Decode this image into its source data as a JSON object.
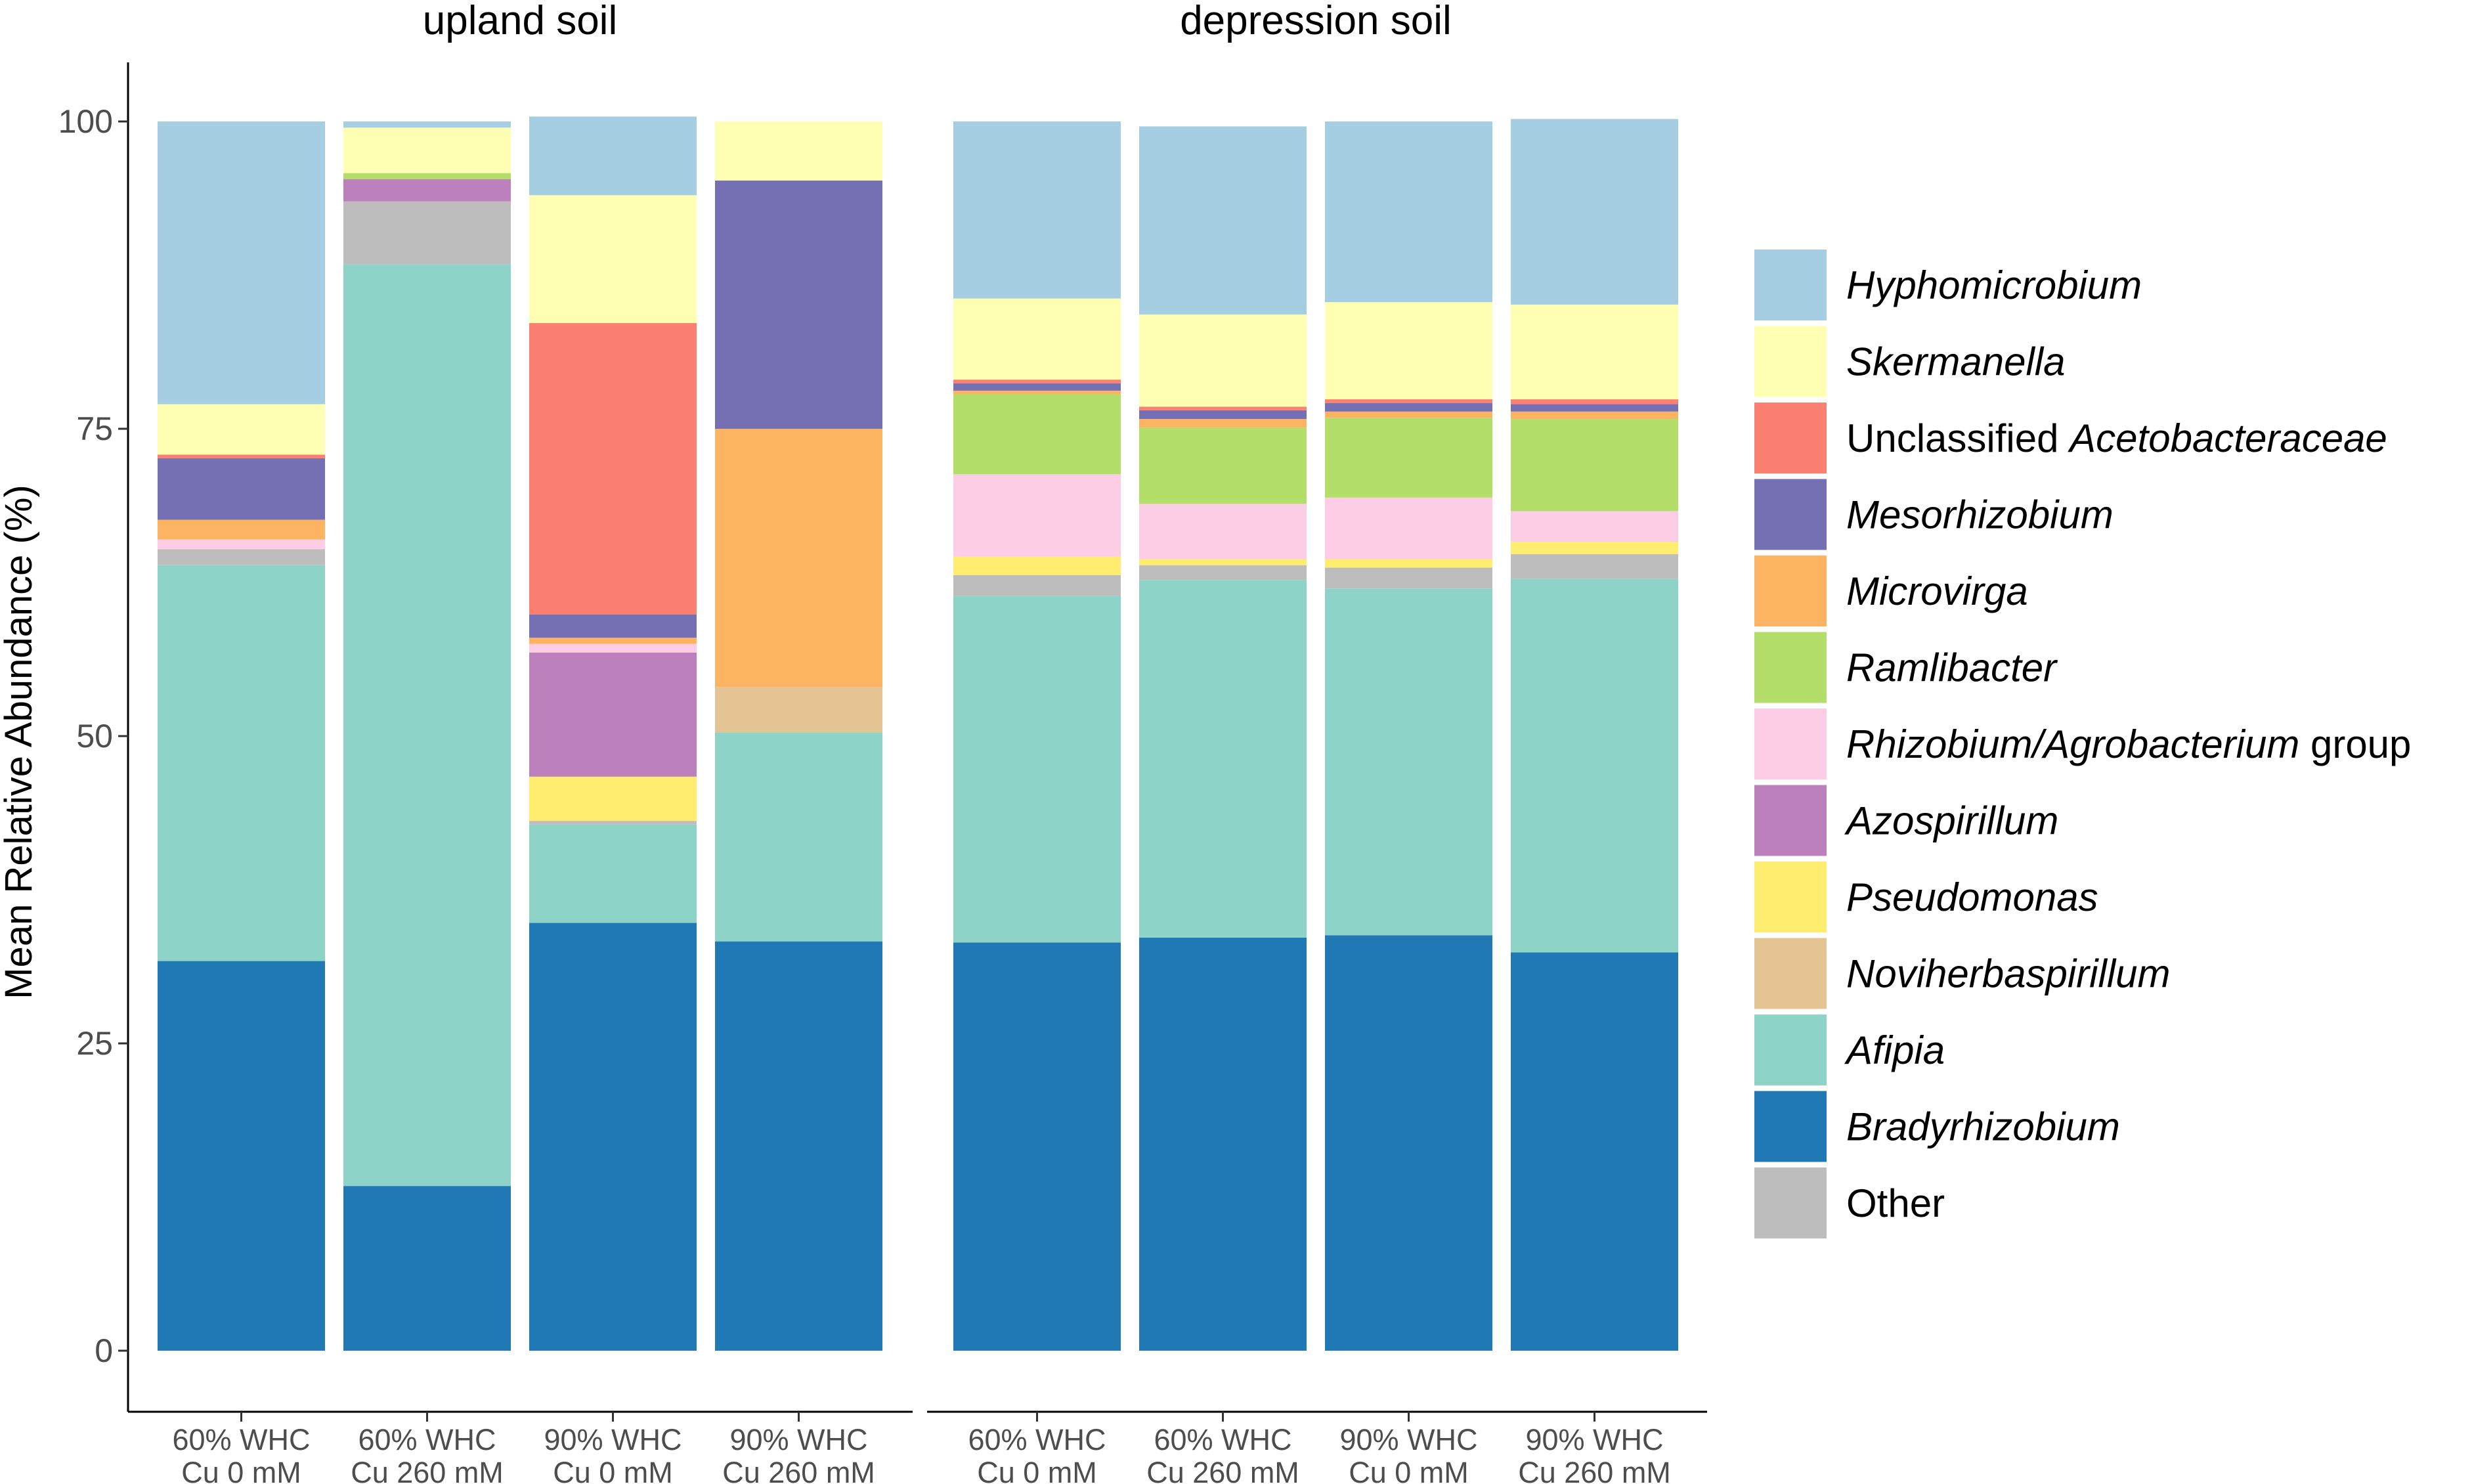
{
  "chart_data": {
    "type": "bar",
    "stacked": true,
    "ylabel": "Mean Relative Abundance (%)",
    "ylim": [
      0,
      100
    ],
    "yticks": [
      0,
      25,
      50,
      75,
      100
    ],
    "grid": false,
    "legend_position": "right",
    "panels": [
      {
        "title": "upland soil",
        "categories": [
          [
            "60% WHC",
            "Cu 0 mM"
          ],
          [
            "60% WHC",
            "Cu 260 mM"
          ],
          [
            "90% WHC",
            "Cu 0 mM"
          ],
          [
            "90% WHC",
            "Cu 260 mM"
          ]
        ]
      },
      {
        "title": "depression soil",
        "categories": [
          [
            "60% WHC",
            "Cu 0 mM"
          ],
          [
            "60% WHC",
            "Cu 260 mM"
          ],
          [
            "90% WHC",
            "Cu 0 mM"
          ],
          [
            "90% WHC",
            "Cu 260 mM"
          ]
        ]
      }
    ],
    "series": [
      {
        "name": "Bradyrhizobium",
        "label_parts": [
          {
            "text": "Bradyrhizobium",
            "italic": true
          }
        ],
        "color": "#2079b4",
        "values": [
          [
            31.7,
            13.4,
            34.8,
            33.3
          ],
          [
            33.2,
            33.6,
            33.8,
            32.4
          ]
        ]
      },
      {
        "name": "Afipia",
        "label_parts": [
          {
            "text": "Afipia",
            "italic": true
          }
        ],
        "color": "#8dd3c7",
        "values": [
          [
            32.2,
            75.0,
            8.0,
            17.0
          ],
          [
            28.2,
            29.1,
            28.2,
            30.4
          ]
        ]
      },
      {
        "name": "Other",
        "label_parts": [
          {
            "text": "Other",
            "italic": false
          }
        ],
        "color": "#bdbdbd",
        "values": [
          [
            1.3,
            5.1,
            0.3,
            0
          ],
          [
            1.7,
            1.2,
            1.7,
            2.0
          ]
        ]
      },
      {
        "name": "Noviherbaspirillum",
        "label_parts": [
          {
            "text": "Noviherbaspirillum",
            "italic": true
          }
        ],
        "color": "#e5c494",
        "values": [
          [
            0,
            0,
            0,
            3.7
          ],
          [
            0,
            0,
            0,
            0
          ]
        ]
      },
      {
        "name": "Pseudomonas",
        "label_parts": [
          {
            "text": "Pseudomonas",
            "italic": true
          }
        ],
        "color": "#ffed6f",
        "values": [
          [
            0,
            0,
            3.6,
            0
          ],
          [
            1.5,
            0.5,
            0.7,
            1.0
          ]
        ]
      },
      {
        "name": "Azospirillum",
        "label_parts": [
          {
            "text": "Azospirillum",
            "italic": true
          }
        ],
        "color": "#bc80bd",
        "values": [
          [
            0,
            1.8,
            10.1,
            0
          ],
          [
            0,
            0,
            0,
            0
          ]
        ]
      },
      {
        "name": "Rhizobium/Agrobacterium group",
        "label_parts": [
          {
            "text": "Rhizobium/Agrobacterium",
            "italic": true
          },
          {
            "text": " group",
            "italic": false
          }
        ],
        "color": "#fccde5",
        "values": [
          [
            0.8,
            0,
            0.7,
            0
          ],
          [
            6.7,
            4.5,
            5.0,
            2.5
          ]
        ]
      },
      {
        "name": "Ramlibacter",
        "label_parts": [
          {
            "text": "Ramlibacter",
            "italic": true
          }
        ],
        "color": "#b3de69",
        "values": [
          [
            0,
            0.5,
            0,
            0
          ],
          [
            6.5,
            6.2,
            6.5,
            7.5
          ]
        ]
      },
      {
        "name": "Microvirga",
        "label_parts": [
          {
            "text": "Microvirga",
            "italic": true
          }
        ],
        "color": "#fdb462",
        "values": [
          [
            1.6,
            0,
            0.5,
            21.0
          ],
          [
            0.3,
            0.7,
            0.5,
            0.6
          ]
        ]
      },
      {
        "name": "Mesorhizobium",
        "label_parts": [
          {
            "text": "Mesorhizobium",
            "italic": true
          }
        ],
        "color": "#7570b3",
        "values": [
          [
            5.0,
            0,
            1.9,
            20.2
          ],
          [
            0.6,
            0.7,
            0.7,
            0.6
          ]
        ]
      },
      {
        "name": "Unclassified Acetobacteraceae",
        "label_parts": [
          {
            "text": "Unclassified ",
            "italic": false
          },
          {
            "text": "Acetobacteraceae",
            "italic": true
          }
        ],
        "color": "#fb8072",
        "values": [
          [
            0.3,
            0,
            23.7,
            0
          ],
          [
            0.3,
            0.3,
            0.3,
            0.4
          ]
        ]
      },
      {
        "name": "Skermanella",
        "label_parts": [
          {
            "text": "Skermanella",
            "italic": true
          }
        ],
        "color": "#ffffb3",
        "values": [
          [
            4.1,
            3.7,
            10.4,
            4.8
          ],
          [
            6.6,
            7.5,
            7.9,
            7.7
          ]
        ]
      },
      {
        "name": "Hyphomicrobium",
        "label_parts": [
          {
            "text": "Hyphomicrobium",
            "italic": true
          }
        ],
        "color": "#a6cee3",
        "values": [
          [
            23.0,
            0.5,
            6.4,
            0
          ],
          [
            14.4,
            15.3,
            14.7,
            15.1
          ]
        ]
      }
    ],
    "legend_order": [
      "Hyphomicrobium",
      "Skermanella",
      "Unclassified Acetobacteraceae",
      "Mesorhizobium",
      "Microvirga",
      "Ramlibacter",
      "Rhizobium/Agrobacterium group",
      "Azospirillum",
      "Pseudomonas",
      "Noviherbaspirillum",
      "Afipia",
      "Bradyrhizobium",
      "Other"
    ]
  }
}
